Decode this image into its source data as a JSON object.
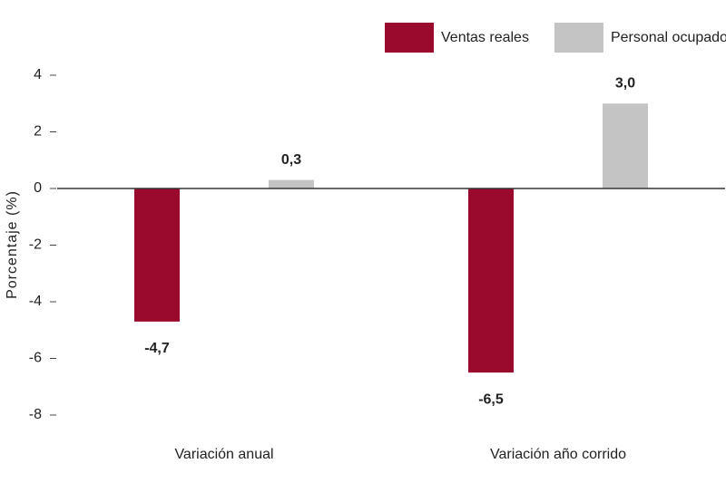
{
  "chart_data": {
    "type": "bar",
    "y_label": "Porcentaje (%)",
    "categories": [
      "Variación anual",
      "Variación año corrido"
    ],
    "series": [
      {
        "name": "Ventas reales",
        "color": "#990a2c",
        "values": [
          -4.7,
          -6.5
        ],
        "value_labels": [
          "-4,7",
          "-6,5"
        ]
      },
      {
        "name": "Personal ocupado",
        "color": "#c4c4c4",
        "values": [
          0.3,
          3.0
        ],
        "value_labels": [
          "0,3",
          "3,0"
        ]
      }
    ],
    "ylim": [
      -8,
      4
    ],
    "yticks": [
      -8,
      -6,
      -4,
      -2,
      0,
      2,
      4
    ],
    "grid": false,
    "legend": "top-right"
  }
}
